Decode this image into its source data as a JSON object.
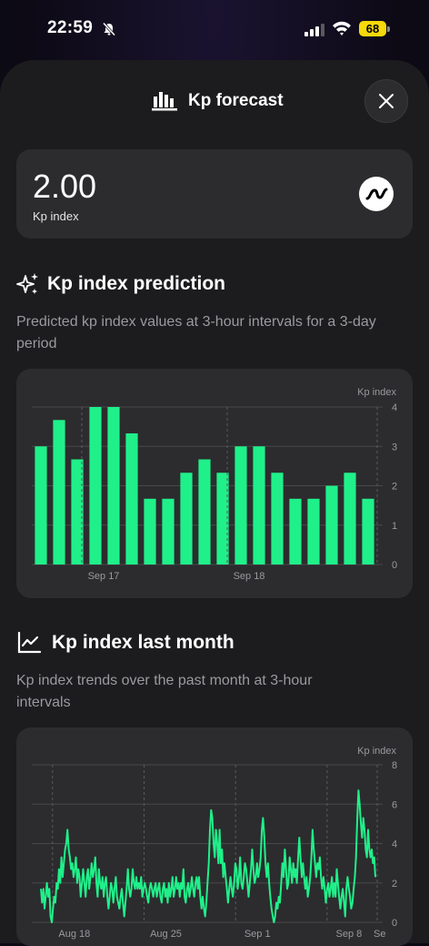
{
  "status_bar": {
    "time": "22:59",
    "battery": "68"
  },
  "header": {
    "title": "Kp forecast",
    "icon": "bar-chart-icon"
  },
  "current": {
    "value": "2.00",
    "label": "Kp index",
    "icon": "trend-wave-icon"
  },
  "prediction": {
    "title": "Kp index prediction",
    "description": "Predicted kp index values at 3-hour intervals for a 3-day period",
    "icon": "sparkles-icon"
  },
  "last_month": {
    "title": "Kp index last month",
    "description": "Kp index trends over the past month at 3-hour intervals",
    "icon": "line-chart-icon"
  },
  "colors": {
    "accent": "#20f08a",
    "card": "#2c2c2e",
    "sheet": "#1c1c1e"
  },
  "chart_data": [
    {
      "type": "bar",
      "title": "",
      "ylabel": "Kp index",
      "ylim": [
        0,
        4
      ],
      "yticks": [
        0,
        1,
        2,
        3,
        4
      ],
      "x_labels": [
        "Sep 17",
        "Sep 18"
      ],
      "values": [
        3.0,
        3.67,
        2.67,
        4.0,
        4.0,
        3.33,
        1.67,
        1.67,
        2.33,
        2.67,
        2.33,
        3.0,
        3.0,
        2.33,
        1.67,
        1.67,
        2.0,
        2.33,
        1.67
      ],
      "grid": true
    },
    {
      "type": "line",
      "title": "",
      "ylabel": "Kp index",
      "ylim": [
        0,
        8
      ],
      "yticks": [
        0,
        2,
        4,
        6,
        8
      ],
      "x_labels": [
        "Aug 18",
        "Aug 25",
        "Sep 1",
        "Sep 8",
        "Se"
      ],
      "values": [
        1.7,
        1.0,
        1.7,
        0.7,
        1.3,
        2.0,
        1.3,
        1.7,
        0.3,
        0.0,
        0.7,
        1.3,
        1.0,
        2.0,
        1.7,
        2.7,
        2.0,
        3.3,
        2.3,
        3.0,
        3.7,
        4.0,
        4.7,
        3.7,
        3.3,
        2.7,
        3.0,
        2.3,
        2.7,
        3.3,
        2.0,
        2.7,
        2.3,
        1.3,
        2.0,
        2.7,
        2.0,
        1.3,
        2.3,
        2.7,
        1.7,
        2.3,
        3.0,
        2.3,
        2.7,
        3.3,
        2.0,
        1.3,
        2.7,
        2.0,
        1.7,
        2.3,
        1.3,
        2.0,
        2.3,
        1.3,
        0.7,
        1.3,
        2.0,
        1.7,
        1.0,
        1.7,
        2.3,
        1.3,
        1.0,
        0.7,
        1.3,
        1.7,
        1.0,
        0.3,
        1.0,
        1.7,
        2.7,
        1.7,
        1.3,
        1.7,
        2.7,
        2.0,
        1.7,
        2.3,
        1.7,
        2.0,
        1.7,
        2.3,
        1.3,
        1.7,
        2.0,
        1.7,
        1.3,
        1.0,
        1.7,
        2.0,
        1.7,
        1.3,
        1.7,
        2.0,
        1.3,
        1.7,
        2.0,
        1.3,
        1.0,
        1.7,
        2.0,
        1.3,
        1.7,
        1.0,
        2.0,
        1.3,
        1.7,
        2.3,
        1.3,
        1.7,
        2.3,
        1.7,
        2.0,
        1.3,
        2.0,
        1.7,
        2.7,
        1.3,
        1.0,
        1.7,
        2.0,
        1.3,
        1.7,
        2.3,
        1.7,
        1.3,
        2.0,
        2.3,
        1.7,
        2.3,
        1.3,
        0.7,
        1.3,
        0.7,
        0.3,
        1.0,
        2.0,
        3.0,
        4.7,
        5.7,
        5.3,
        4.0,
        3.3,
        4.7,
        4.0,
        3.0,
        4.7,
        3.0,
        3.7,
        2.3,
        3.0,
        2.3,
        1.7,
        1.0,
        1.7,
        2.3,
        1.7,
        1.3,
        2.0,
        3.0,
        2.7,
        1.7,
        2.3,
        3.3,
        2.0,
        1.7,
        2.3,
        3.0,
        2.7,
        2.0,
        1.3,
        2.0,
        2.7,
        3.7,
        2.7,
        2.0,
        2.3,
        3.0,
        2.3,
        2.7,
        3.3,
        4.7,
        5.3,
        4.3,
        3.0,
        2.3,
        3.0,
        2.0,
        1.3,
        0.7,
        0.3,
        0.0,
        0.3,
        1.0,
        0.7,
        1.3,
        1.0,
        2.0,
        3.0,
        2.3,
        3.7,
        2.7,
        1.7,
        2.0,
        3.3,
        2.7,
        2.0,
        3.0,
        2.3,
        2.7,
        2.0,
        3.3,
        4.3,
        3.3,
        2.3,
        3.0,
        2.3,
        1.7,
        2.3,
        1.3,
        1.7,
        2.3,
        3.3,
        4.7,
        3.7,
        3.0,
        2.3,
        3.0,
        2.7,
        3.3,
        2.3,
        1.7,
        2.3,
        1.7,
        1.0,
        1.7,
        2.0,
        1.3,
        1.7,
        2.3,
        1.3,
        2.0,
        1.3,
        2.7,
        2.0,
        1.3,
        0.7,
        1.3,
        1.7,
        1.0,
        0.3,
        1.7,
        2.3,
        1.7,
        1.3,
        0.7,
        1.0,
        1.7,
        2.3,
        3.3,
        5.3,
        6.7,
        6.0,
        5.0,
        4.3,
        5.3,
        4.7,
        3.7,
        3.3,
        4.7,
        3.7,
        3.3,
        3.7,
        3.0,
        3.3,
        2.3
      ],
      "grid": true
    }
  ]
}
